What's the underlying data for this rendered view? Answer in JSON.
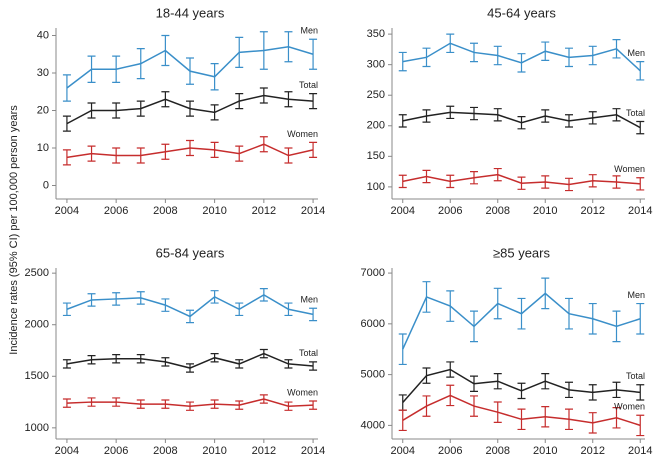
{
  "ylabel": "Incidence rates (95% CI) per 100,000 person years",
  "chart_data": [
    {
      "type": "line",
      "title": "18-44 years",
      "x": [
        2004,
        2005,
        2006,
        2007,
        2008,
        2009,
        2010,
        2011,
        2012,
        2013,
        2014
      ],
      "xlim": [
        2003.8,
        2014.2
      ],
      "xticks": [
        2004,
        2006,
        2008,
        2010,
        2012,
        2014
      ],
      "ylim": [
        -2,
        42
      ],
      "yticks": [
        0,
        10,
        20,
        30,
        40
      ],
      "series": [
        {
          "name": "Men",
          "color": "#3a8fc9",
          "values": [
            26,
            31,
            31,
            32.5,
            36,
            30.5,
            29,
            35.5,
            36,
            37,
            35
          ],
          "errors": [
            3.5,
            3.5,
            3.5,
            4,
            4,
            3.5,
            3.5,
            4,
            5,
            4,
            4
          ]
        },
        {
          "name": "Total",
          "color": "#222222",
          "values": [
            16.5,
            20,
            20,
            20.5,
            23,
            20.5,
            19.5,
            22.5,
            24,
            23,
            22.5
          ],
          "errors": [
            2,
            2,
            2,
            2,
            2,
            2,
            2,
            2,
            2,
            2,
            2
          ]
        },
        {
          "name": "Women",
          "color": "#c62d2d",
          "values": [
            7.5,
            8.5,
            8,
            8,
            9,
            10,
            9.5,
            8.5,
            11,
            8,
            9.5
          ],
          "errors": [
            2,
            2,
            2,
            2,
            2,
            2,
            2,
            2,
            2,
            2,
            2
          ]
        }
      ]
    },
    {
      "type": "line",
      "title": "45-64 years",
      "x": [
        2004,
        2005,
        2006,
        2007,
        2008,
        2009,
        2010,
        2011,
        2012,
        2013,
        2014
      ],
      "xlim": [
        2003.8,
        2014.2
      ],
      "xticks": [
        2004,
        2006,
        2008,
        2010,
        2012,
        2014
      ],
      "ylim": [
        90,
        360
      ],
      "yticks": [
        100,
        150,
        200,
        250,
        300,
        350
      ],
      "series": [
        {
          "name": "Men",
          "color": "#3a8fc9",
          "values": [
            305,
            312,
            335,
            320,
            315,
            303,
            322,
            312,
            315,
            326,
            290
          ],
          "errors": [
            15,
            15,
            15,
            15,
            15,
            15,
            15,
            15,
            15,
            15,
            15
          ]
        },
        {
          "name": "Total",
          "color": "#222222",
          "values": [
            208,
            216,
            222,
            220,
            218,
            205,
            216,
            208,
            213,
            218,
            197
          ],
          "errors": [
            10,
            10,
            10,
            10,
            10,
            10,
            10,
            10,
            10,
            10,
            10
          ]
        },
        {
          "name": "Women",
          "color": "#c62d2d",
          "values": [
            109,
            117,
            109,
            115,
            120,
            106,
            108,
            104,
            110,
            108,
            105
          ],
          "errors": [
            10,
            10,
            10,
            10,
            10,
            10,
            10,
            10,
            10,
            10,
            10
          ]
        }
      ]
    },
    {
      "type": "line",
      "title": "65-84 years",
      "x": [
        2004,
        2005,
        2006,
        2007,
        2008,
        2009,
        2010,
        2011,
        2012,
        2013,
        2014
      ],
      "xlim": [
        2003.8,
        2014.2
      ],
      "xticks": [
        2004,
        2006,
        2008,
        2010,
        2012,
        2014
      ],
      "ylim": [
        950,
        2550
      ],
      "yticks": [
        1000,
        1500,
        2000,
        2500
      ],
      "series": [
        {
          "name": "Men",
          "color": "#3a8fc9",
          "values": [
            2150,
            2240,
            2250,
            2260,
            2190,
            2080,
            2270,
            2150,
            2290,
            2150,
            2100
          ],
          "errors": [
            60,
            60,
            60,
            60,
            60,
            60,
            60,
            60,
            60,
            60,
            60
          ]
        },
        {
          "name": "Total",
          "color": "#222222",
          "values": [
            1620,
            1660,
            1670,
            1670,
            1640,
            1580,
            1680,
            1620,
            1720,
            1620,
            1600
          ],
          "errors": [
            40,
            40,
            40,
            40,
            40,
            40,
            40,
            40,
            40,
            40,
            40
          ]
        },
        {
          "name": "Women",
          "color": "#c62d2d",
          "values": [
            1240,
            1250,
            1250,
            1230,
            1230,
            1210,
            1230,
            1220,
            1280,
            1210,
            1220
          ],
          "errors": [
            40,
            40,
            40,
            40,
            40,
            40,
            40,
            40,
            40,
            40,
            40
          ]
        }
      ]
    },
    {
      "type": "line",
      "title": "≥85 years",
      "x": [
        2004,
        2005,
        2006,
        2007,
        2008,
        2009,
        2010,
        2011,
        2012,
        2013,
        2014
      ],
      "xlim": [
        2003.8,
        2014.2
      ],
      "xticks": [
        2004,
        2006,
        2008,
        2010,
        2012,
        2014
      ],
      "ylim": [
        3850,
        7100
      ],
      "yticks": [
        4000,
        5000,
        6000,
        7000
      ],
      "series": [
        {
          "name": "Men",
          "color": "#3a8fc9",
          "values": [
            5500,
            6530,
            6350,
            5950,
            6400,
            6200,
            6600,
            6200,
            6100,
            5950,
            6100
          ],
          "errors": [
            300,
            300,
            300,
            300,
            300,
            300,
            300,
            300,
            300,
            300,
            300
          ]
        },
        {
          "name": "Total",
          "color": "#222222",
          "values": [
            4450,
            4980,
            5100,
            4820,
            4870,
            4680,
            4870,
            4700,
            4650,
            4700,
            4650
          ],
          "errors": [
            150,
            150,
            150,
            150,
            150,
            150,
            150,
            150,
            150,
            150,
            150
          ]
        },
        {
          "name": "Women",
          "color": "#c62d2d",
          "values": [
            4100,
            4380,
            4590,
            4380,
            4260,
            4120,
            4170,
            4120,
            4050,
            4150,
            4000
          ],
          "errors": [
            200,
            200,
            200,
            200,
            200,
            200,
            200,
            200,
            200,
            200,
            200
          ]
        }
      ]
    }
  ]
}
